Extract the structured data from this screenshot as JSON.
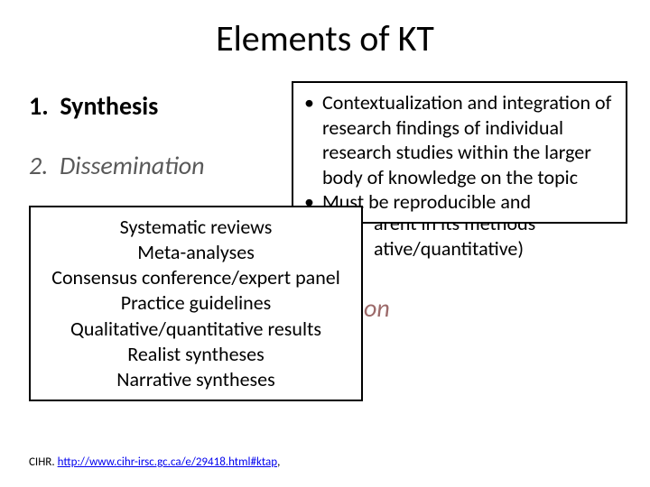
{
  "title": "Elements of KT",
  "left_list": {
    "item1": {
      "num": "1.",
      "label": "Synthesis"
    },
    "item2": {
      "num": "2.",
      "label": "Dissemination"
    }
  },
  "right_box": {
    "bullets": [
      "Contextualization and integration of research findings of individual research studies within the larger body of knowledge on the topic",
      "Must be reproducible and"
    ]
  },
  "peek": {
    "line1": "arent in its methods",
    "line2": "ative/quantitative)",
    "item": "on"
  },
  "left_box": {
    "lines": [
      "Systematic reviews",
      "Meta-analyses",
      "Consensus conference/expert panel",
      "Practice guidelines",
      "Qualitative/quantitative results",
      "Realist syntheses",
      "Narrative syntheses"
    ]
  },
  "footer": {
    "prefix": "CIHR. ",
    "link": "http://www.cihr-irsc.gc.ca/e/29418.html#ktap",
    "suffix": ","
  },
  "colors": {
    "title": "#000000",
    "muted_item": "#595959",
    "peek_item": "#9c6a6a",
    "link": "#0000ee",
    "border": "#000000",
    "bg": "#ffffff"
  },
  "typography": {
    "title_size_pt": 30,
    "list_size_pt": 21,
    "box_size_pt": 16,
    "footer_size_pt": 10,
    "family": "Calibri"
  }
}
